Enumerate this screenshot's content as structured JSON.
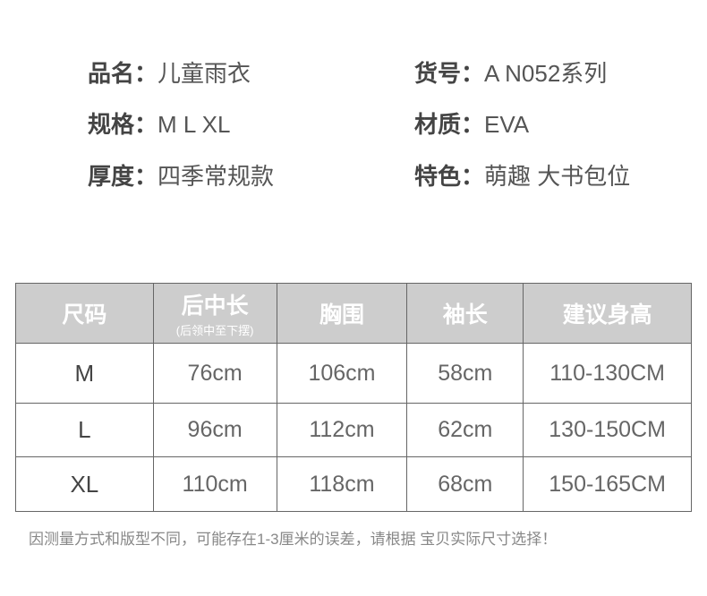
{
  "specs": [
    {
      "key": "品名：",
      "value": "儿童雨衣"
    },
    {
      "key": "货号：",
      "value": "A N052系列"
    },
    {
      "key": "规格：",
      "value": "M L XL"
    },
    {
      "key": "材质：",
      "value": "EVA"
    },
    {
      "key": "厚度：",
      "value": "四季常规款"
    },
    {
      "key": "特色：",
      "value": "萌趣 大书包位"
    }
  ],
  "table": {
    "headers": [
      {
        "label": "尺码",
        "sub": ""
      },
      {
        "label": "后中长",
        "sub": "(后领中至下摆)"
      },
      {
        "label": "胸围",
        "sub": ""
      },
      {
        "label": "袖长",
        "sub": ""
      },
      {
        "label": "建议身高",
        "sub": ""
      }
    ],
    "rows": [
      [
        "M",
        "76cm",
        "106cm",
        "58cm",
        "110-130CM"
      ],
      [
        "L",
        "96cm",
        "112cm",
        "62cm",
        "130-150CM"
      ],
      [
        "XL",
        "110cm",
        "118cm",
        "68cm",
        "150-165CM"
      ]
    ]
  },
  "note": "因测量方式和版型不同，可能存在1-3厘米的误差，请根据 宝贝实际尺寸选择！"
}
